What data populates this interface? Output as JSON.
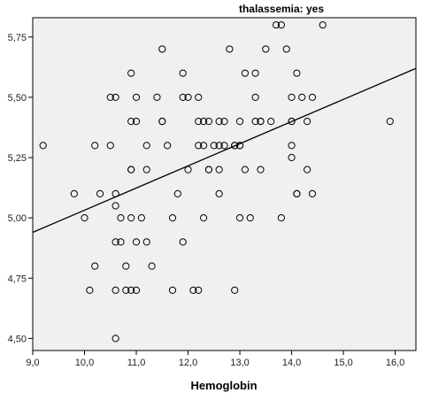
{
  "chart_data": {
    "type": "scatter",
    "title": "thalassemia: yes",
    "xlabel": "Hemoglobin",
    "ylabel": "",
    "xlim": [
      9.0,
      16.4
    ],
    "ylim": [
      4.45,
      5.83
    ],
    "xticks": [
      "9,0",
      "10,0",
      "11,0",
      "12,0",
      "13,0",
      "14,0",
      "15,0",
      "16,0"
    ],
    "yticks": [
      "4,50",
      "4,75",
      "5,00",
      "5,25",
      "5,50",
      "5,75"
    ],
    "grid": false,
    "fit_line": {
      "x": [
        9.0,
        16.4
      ],
      "y": [
        4.94,
        5.62
      ]
    },
    "colors": {
      "background": "#f0f0f0",
      "marker": "#000000",
      "line": "#000000"
    },
    "points": [
      [
        9.2,
        5.3
      ],
      [
        9.8,
        5.1
      ],
      [
        10.0,
        5.0
      ],
      [
        10.1,
        4.7
      ],
      [
        10.2,
        4.8
      ],
      [
        10.2,
        5.3
      ],
      [
        10.3,
        5.1
      ],
      [
        10.5,
        5.3
      ],
      [
        10.5,
        5.5
      ],
      [
        10.6,
        5.5
      ],
      [
        10.6,
        5.1
      ],
      [
        10.6,
        5.05
      ],
      [
        10.6,
        4.9
      ],
      [
        10.6,
        4.7
      ],
      [
        10.6,
        4.5
      ],
      [
        10.7,
        5.0
      ],
      [
        10.7,
        4.9
      ],
      [
        10.8,
        4.8
      ],
      [
        10.8,
        4.7
      ],
      [
        10.9,
        5.6
      ],
      [
        10.9,
        5.4
      ],
      [
        10.9,
        5.2
      ],
      [
        10.9,
        5.2
      ],
      [
        10.9,
        5.0
      ],
      [
        10.9,
        4.7
      ],
      [
        11.0,
        5.5
      ],
      [
        11.0,
        5.4
      ],
      [
        11.0,
        4.9
      ],
      [
        11.0,
        4.7
      ],
      [
        11.1,
        5.0
      ],
      [
        11.2,
        5.3
      ],
      [
        11.2,
        5.2
      ],
      [
        11.2,
        4.9
      ],
      [
        11.3,
        4.8
      ],
      [
        11.4,
        5.5
      ],
      [
        11.5,
        5.7
      ],
      [
        11.5,
        5.4
      ],
      [
        11.5,
        5.4
      ],
      [
        11.6,
        5.3
      ],
      [
        11.7,
        5.0
      ],
      [
        11.7,
        4.7
      ],
      [
        11.8,
        5.1
      ],
      [
        11.9,
        5.6
      ],
      [
        11.9,
        5.5
      ],
      [
        11.9,
        4.9
      ],
      [
        12.0,
        5.5
      ],
      [
        12.0,
        5.2
      ],
      [
        12.1,
        4.7
      ],
      [
        12.2,
        5.5
      ],
      [
        12.2,
        5.4
      ],
      [
        12.2,
        5.3
      ],
      [
        12.2,
        4.7
      ],
      [
        12.3,
        5.4
      ],
      [
        12.3,
        5.3
      ],
      [
        12.3,
        5.0
      ],
      [
        12.4,
        5.4
      ],
      [
        12.4,
        5.2
      ],
      [
        12.4,
        5.2
      ],
      [
        12.5,
        5.3
      ],
      [
        12.6,
        5.4
      ],
      [
        12.6,
        5.3
      ],
      [
        12.6,
        5.2
      ],
      [
        12.6,
        5.1
      ],
      [
        12.7,
        5.4
      ],
      [
        12.7,
        5.3
      ],
      [
        12.8,
        5.7
      ],
      [
        12.9,
        5.3
      ],
      [
        12.9,
        5.3
      ],
      [
        12.9,
        4.7
      ],
      [
        13.0,
        5.4
      ],
      [
        13.0,
        5.3
      ],
      [
        13.0,
        5.3
      ],
      [
        13.0,
        5.0
      ],
      [
        13.1,
        5.6
      ],
      [
        13.1,
        5.2
      ],
      [
        13.2,
        5.0
      ],
      [
        13.3,
        5.6
      ],
      [
        13.3,
        5.5
      ],
      [
        13.3,
        5.4
      ],
      [
        13.4,
        5.4
      ],
      [
        13.4,
        5.4
      ],
      [
        13.4,
        5.2
      ],
      [
        13.5,
        5.7
      ],
      [
        13.6,
        5.4
      ],
      [
        13.7,
        5.8
      ],
      [
        13.8,
        5.8
      ],
      [
        13.8,
        5.0
      ],
      [
        13.9,
        5.7
      ],
      [
        14.0,
        5.5
      ],
      [
        14.0,
        5.4
      ],
      [
        14.0,
        5.4
      ],
      [
        14.0,
        5.3
      ],
      [
        14.0,
        5.25
      ],
      [
        14.1,
        5.6
      ],
      [
        14.1,
        5.1
      ],
      [
        14.1,
        5.1
      ],
      [
        14.2,
        5.5
      ],
      [
        14.3,
        5.4
      ],
      [
        14.3,
        5.2
      ],
      [
        14.4,
        5.5
      ],
      [
        14.4,
        5.1
      ],
      [
        14.6,
        5.8
      ],
      [
        15.9,
        5.4
      ]
    ]
  }
}
